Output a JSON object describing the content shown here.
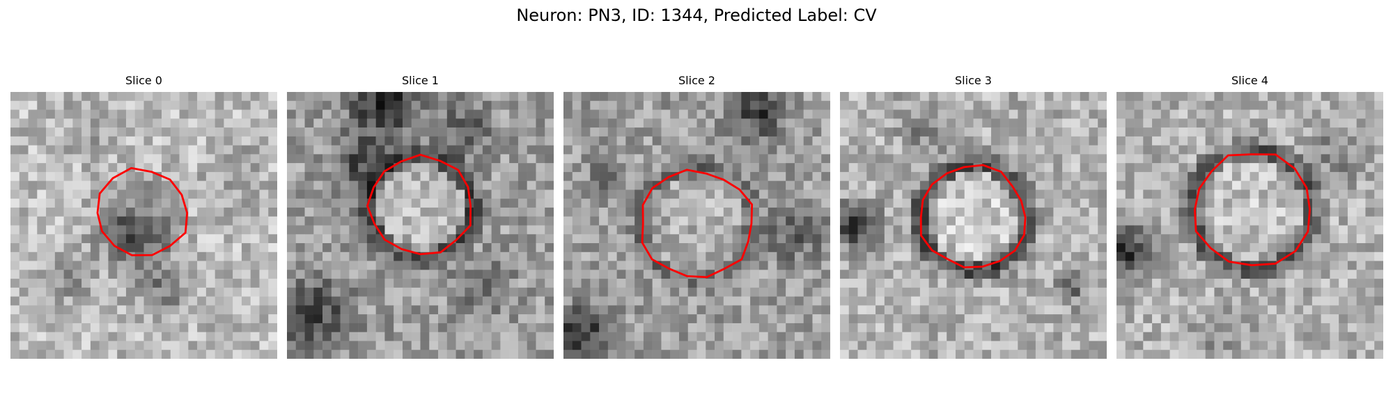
{
  "figure": {
    "title": "Neuron: PN3, ID: 1344, Predicted Label: CV",
    "contour_color": "#ff0000"
  },
  "panels": [
    {
      "title": "Slice 0"
    },
    {
      "title": "Slice 1"
    },
    {
      "title": "Slice 2"
    },
    {
      "title": "Slice 3"
    },
    {
      "title": "Slice 4"
    }
  ]
}
